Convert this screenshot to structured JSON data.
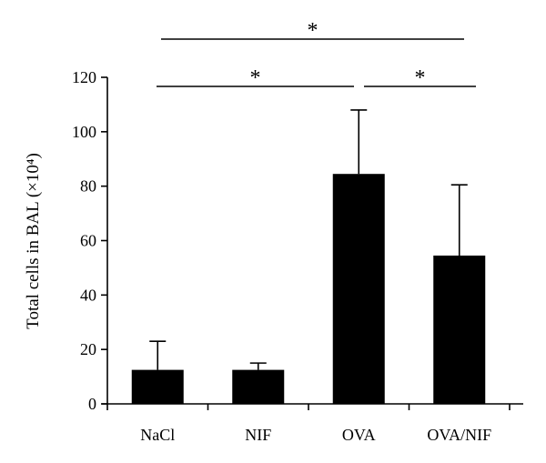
{
  "chart_data": {
    "type": "bar",
    "categories": [
      "NaCl",
      "NIF",
      "OVA",
      "OVA/NIF"
    ],
    "values": [
      12.5,
      12.5,
      84.5,
      54.5
    ],
    "error_plus": [
      10.5,
      2.5,
      23.5,
      26
    ],
    "title": "",
    "xlabel": "",
    "ylabel": "Total cells in BAL (×10⁴)",
    "ylim": [
      0,
      120
    ],
    "yticks": [
      0,
      20,
      40,
      60,
      80,
      100,
      120
    ],
    "bar_color": "#000000",
    "grid": false,
    "legend": "none",
    "significance": [
      {
        "from": 0,
        "to": 2,
        "label": "*"
      },
      {
        "from": 2,
        "to": 3,
        "label": "*"
      },
      {
        "from": 0,
        "to": 3,
        "label": "*"
      }
    ]
  }
}
